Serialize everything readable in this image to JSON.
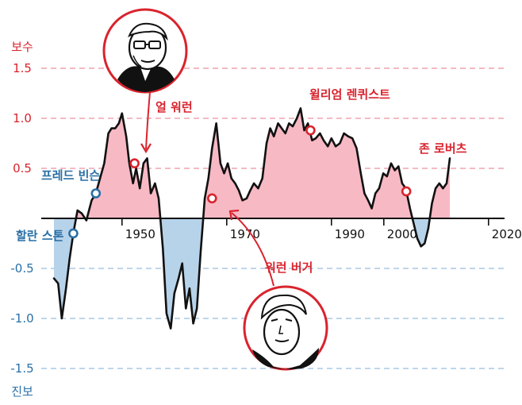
{
  "chart_data": {
    "type": "area",
    "y_top_label": "보수",
    "y_bottom_label": "진보",
    "ylim": [
      -1.75,
      1.75
    ],
    "yticks": [
      {
        "value": 1.5,
        "label": "1.5"
      },
      {
        "value": 1.0,
        "label": "1.0"
      },
      {
        "value": 0.5,
        "label": "0.5"
      },
      {
        "value": -0.5,
        "label": "-0.5"
      },
      {
        "value": -1.0,
        "label": "-1.0"
      },
      {
        "value": -1.5,
        "label": "-1.5"
      }
    ],
    "xlim": [
      1937,
      2021
    ],
    "xticks": [
      {
        "value": 1950,
        "label": "1950"
      },
      {
        "value": 1970,
        "label": "1970"
      },
      {
        "value": 1990,
        "label": "1990"
      },
      {
        "value": 2000,
        "label": "2000"
      },
      {
        "value": 2020,
        "label": "2020"
      }
    ],
    "grid": "horizontal dashed",
    "colors": {
      "positive": "#f7b9c4",
      "negative": "#b7d3ea",
      "line": "#111111",
      "conservative_text": "#d9232d",
      "liberal_text": "#2a6fa5",
      "pos_grid": "#f0a4af",
      "neg_grid": "#a9c9e4"
    },
    "series": [
      {
        "name": "",
        "points": [
          [
            1937,
            -0.6
          ],
          [
            1937.8,
            -0.65
          ],
          [
            1938.5,
            -1.0
          ],
          [
            1939.3,
            -0.7
          ],
          [
            1940,
            -0.4
          ],
          [
            1940.7,
            -0.15
          ],
          [
            1941.5,
            0.08
          ],
          [
            1942.3,
            0.05
          ],
          [
            1943.2,
            -0.02
          ],
          [
            1944.2,
            0.18
          ],
          [
            1945,
            0.25
          ],
          [
            1945.8,
            0.4
          ],
          [
            1946.6,
            0.55
          ],
          [
            1947.4,
            0.85
          ],
          [
            1948,
            0.9
          ],
          [
            1948.7,
            0.9
          ],
          [
            1949.4,
            0.95
          ],
          [
            1950,
            1.05
          ],
          [
            1950.8,
            0.82
          ],
          [
            1951.4,
            0.55
          ],
          [
            1952.1,
            0.35
          ],
          [
            1952.7,
            0.5
          ],
          [
            1953.4,
            0.3
          ],
          [
            1954.1,
            0.55
          ],
          [
            1954.8,
            0.6
          ],
          [
            1955.5,
            0.25
          ],
          [
            1956.3,
            0.35
          ],
          [
            1957,
            0.2
          ],
          [
            1957.8,
            -0.3
          ],
          [
            1958.5,
            -0.95
          ],
          [
            1959.3,
            -1.1
          ],
          [
            1960,
            -0.75
          ],
          [
            1960.8,
            -0.6
          ],
          [
            1961.5,
            -0.45
          ],
          [
            1962.2,
            -0.9
          ],
          [
            1962.9,
            -0.7
          ],
          [
            1963.6,
            -1.05
          ],
          [
            1964.3,
            -0.9
          ],
          [
            1965,
            -0.35
          ],
          [
            1965.8,
            0.2
          ],
          [
            1966.5,
            0.4
          ],
          [
            1967.2,
            0.7
          ],
          [
            1968,
            0.95
          ],
          [
            1968.8,
            0.55
          ],
          [
            1969.5,
            0.45
          ],
          [
            1970.2,
            0.55
          ],
          [
            1970.9,
            0.4
          ],
          [
            1971.6,
            0.35
          ],
          [
            1972.3,
            0.28
          ],
          [
            1973,
            0.18
          ],
          [
            1973.8,
            0.2
          ],
          [
            1974.5,
            0.28
          ],
          [
            1975.2,
            0.35
          ],
          [
            1976,
            0.3
          ],
          [
            1976.8,
            0.4
          ],
          [
            1977.6,
            0.75
          ],
          [
            1978.3,
            0.9
          ],
          [
            1979,
            0.82
          ],
          [
            1979.8,
            0.95
          ],
          [
            1980.5,
            0.9
          ],
          [
            1981.2,
            0.85
          ],
          [
            1981.9,
            0.95
          ],
          [
            1982.6,
            0.92
          ],
          [
            1983.4,
            1.0
          ],
          [
            1984.1,
            1.1
          ],
          [
            1984.8,
            0.88
          ],
          [
            1985.5,
            0.95
          ],
          [
            1986.3,
            0.78
          ],
          [
            1987,
            0.8
          ],
          [
            1987.8,
            0.85
          ],
          [
            1988.5,
            0.78
          ],
          [
            1989.3,
            0.72
          ],
          [
            1990,
            0.8
          ],
          [
            1990.8,
            0.72
          ],
          [
            1991.6,
            0.75
          ],
          [
            1992.4,
            0.85
          ],
          [
            1993.2,
            0.82
          ],
          [
            1994,
            0.8
          ],
          [
            1994.8,
            0.7
          ],
          [
            1995.6,
            0.45
          ],
          [
            1996.3,
            0.25
          ],
          [
            1997,
            0.18
          ],
          [
            1997.7,
            0.1
          ],
          [
            1998.4,
            0.25
          ],
          [
            1999.1,
            0.3
          ],
          [
            1999.9,
            0.45
          ],
          [
            2000.6,
            0.42
          ],
          [
            2001.4,
            0.55
          ],
          [
            2002.1,
            0.48
          ],
          [
            2002.8,
            0.52
          ],
          [
            2003.5,
            0.35
          ],
          [
            2004.2,
            0.3
          ],
          [
            2005,
            0.1
          ],
          [
            2005.7,
            -0.05
          ],
          [
            2006.4,
            -0.2
          ],
          [
            2007.1,
            -0.28
          ],
          [
            2007.8,
            -0.25
          ],
          [
            2008.5,
            -0.1
          ],
          [
            2009.2,
            0.15
          ],
          [
            2009.9,
            0.3
          ],
          [
            2010.6,
            0.35
          ],
          [
            2011.3,
            0.3
          ],
          [
            2012,
            0.35
          ],
          [
            2012.6,
            0.6
          ]
        ]
      }
    ],
    "annotations": [
      {
        "text": "할란 스톤",
        "point": [
          1940.7,
          -0.15
        ],
        "party": "liberal"
      },
      {
        "text": "프레드 빈슨",
        "point": [
          1945,
          0.25
        ],
        "party": "liberal"
      },
      {
        "text": "얼 워런",
        "point": [
          1952.4,
          0.55
        ],
        "party": "conservative"
      },
      {
        "text": "워런 버거",
        "point": [
          1967.2,
          0.2
        ],
        "party": "conservative"
      },
      {
        "text": "윌리엄 렌퀴스트",
        "point": [
          1986,
          0.88
        ],
        "party": "conservative"
      },
      {
        "text": "존 로버츠",
        "point": [
          2004.3,
          0.27
        ],
        "party": "conservative"
      }
    ]
  }
}
